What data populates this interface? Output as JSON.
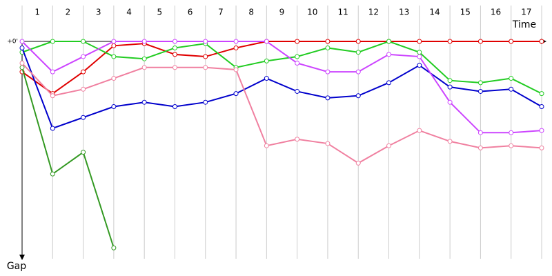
{
  "chart_data": {
    "type": "line",
    "x_label": "Time",
    "y_label": "Gap",
    "lap_labels": [
      "1",
      "2",
      "3",
      "4",
      "5",
      "6",
      "7",
      "8",
      "9",
      "10",
      "11",
      "12",
      "13",
      "14",
      "15",
      "16",
      "17"
    ],
    "x": [
      0,
      1,
      2,
      3,
      4,
      5,
      6,
      7,
      8,
      9,
      10,
      11,
      12,
      13,
      14,
      15,
      16,
      17
    ],
    "xlim": [
      0,
      17
    ],
    "ylim": [
      0,
      100
    ],
    "yticks": [
      {
        "value": 0,
        "label": "+0'"
      }
    ],
    "grid": true,
    "series": [
      {
        "name": "Red",
        "color": "#e00000",
        "values": [
          14,
          24,
          14,
          2,
          1,
          6,
          7,
          3,
          0,
          0,
          0,
          0,
          0,
          0,
          0,
          0,
          0,
          0
        ]
      },
      {
        "name": "Green",
        "color": "#22cc22",
        "values": [
          5,
          0,
          0,
          7,
          8,
          3,
          1,
          12,
          9,
          7,
          3,
          5,
          0,
          5,
          18,
          19,
          17,
          24
        ]
      },
      {
        "name": "Dark green",
        "color": "#339922",
        "values": [
          12,
          61,
          51,
          95,
          null,
          null,
          null,
          null,
          null,
          null,
          null,
          null,
          null,
          null,
          null,
          null,
          null,
          null
        ]
      },
      {
        "name": "Blue",
        "color": "#0000cc",
        "values": [
          3,
          40,
          35,
          30,
          28,
          30,
          28,
          24,
          17,
          23,
          26,
          25,
          19,
          11,
          21,
          23,
          22,
          30
        ]
      },
      {
        "name": "Purple",
        "color": "#cc44ff",
        "values": [
          0,
          14,
          7,
          0,
          0,
          0,
          0,
          0,
          0,
          10,
          14,
          14,
          6,
          7,
          28,
          42,
          42,
          41
        ]
      },
      {
        "name": "Pink",
        "color": "#f080a0",
        "values": [
          10,
          25,
          22,
          17,
          12,
          12,
          12,
          13,
          48,
          45,
          47,
          56,
          48,
          41,
          46,
          49,
          48,
          49
        ]
      }
    ]
  }
}
